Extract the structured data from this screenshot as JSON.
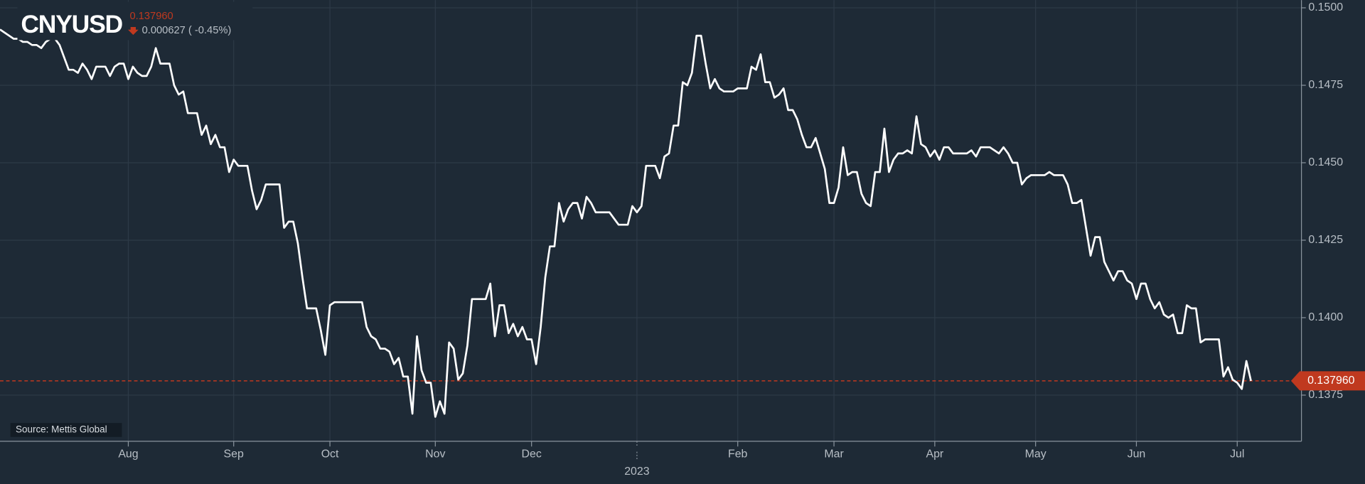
{
  "chart_data": {
    "type": "line",
    "title": "CNYUSD",
    "last_value": 0.13796,
    "last_value_label": "0.137960",
    "change_label": "0.000627 ( -0.45%)",
    "source": "Source: Mettis Global",
    "color": "#ffffff",
    "last_color": "#c0391f",
    "grid": true,
    "ylim": [
      0.13601,
      0.15025
    ],
    "yticks": [
      0.1375,
      {
        "value": 0.14,
        "label": "0.1400"
      },
      0.1425,
      {
        "value": 0.145,
        "label": "0.1450"
      },
      0.1475,
      {
        "value": 0.15,
        "label": "0.1500"
      }
    ],
    "categories": [
      null,
      null,
      null,
      null,
      null,
      null,
      null,
      null,
      null,
      null,
      null,
      null,
      null,
      null,
      null,
      null,
      null,
      null,
      null,
      null,
      null,
      null,
      null,
      null,
      null,
      null,
      null,
      null,
      "Aug",
      null,
      null,
      null,
      null,
      null,
      null,
      null,
      null,
      null,
      null,
      null,
      null,
      null,
      null,
      null,
      null,
      null,
      null,
      null,
      null,
      null,
      null,
      "Sep",
      null,
      null,
      null,
      null,
      null,
      null,
      null,
      null,
      null,
      null,
      null,
      null,
      null,
      null,
      null,
      null,
      null,
      null,
      null,
      null,
      "Oct",
      null,
      null,
      null,
      null,
      null,
      null,
      null,
      null,
      null,
      null,
      null,
      null,
      null,
      null,
      null,
      null,
      null,
      null,
      null,
      null,
      null,
      null,
      "Nov",
      null,
      null,
      null,
      null,
      null,
      null,
      null,
      null,
      null,
      null,
      null,
      null,
      null,
      null,
      null,
      null,
      null,
      null,
      null,
      null,
      "Dec",
      null,
      null,
      null,
      null,
      null,
      null,
      null,
      null,
      null,
      null,
      null,
      null,
      null,
      null,
      null,
      null,
      null,
      null,
      null,
      null,
      null,
      null,
      "2023",
      null,
      null,
      null,
      null,
      null,
      null,
      null,
      null,
      null,
      null,
      null,
      null,
      null,
      null,
      null,
      null,
      null,
      null,
      null,
      null,
      null,
      "Feb",
      null,
      null,
      null,
      null,
      null,
      null,
      null,
      null,
      null,
      null,
      null,
      null,
      null,
      null,
      null,
      null,
      null,
      null,
      null,
      null,
      "Mar",
      null,
      null,
      null,
      null,
      null,
      null,
      null,
      null,
      null,
      null,
      null,
      null,
      null,
      null,
      null,
      null,
      null,
      null,
      null,
      null,
      null,
      "Apr",
      null,
      null,
      null,
      null,
      null,
      null,
      null,
      null,
      null,
      null,
      null,
      null,
      null,
      null,
      null,
      null,
      null,
      null,
      null,
      null,
      null,
      "May",
      null,
      null,
      null,
      null,
      null,
      null,
      null,
      null,
      null,
      null,
      null,
      null,
      null,
      null,
      null,
      null,
      null,
      null,
      null,
      null,
      null,
      "Jun",
      null,
      null,
      null,
      null,
      null,
      null,
      null,
      null,
      null,
      null,
      null,
      null,
      null,
      null,
      null,
      null,
      null,
      null,
      null,
      null,
      null,
      "Jul",
      null,
      null,
      null
    ],
    "values": [
      0.1493,
      0.1492,
      0.1491,
      0.149,
      0.149,
      0.1489,
      0.1489,
      0.1488,
      0.1488,
      0.1487,
      0.1489,
      0.149,
      0.149,
      0.1488,
      0.1484,
      0.148,
      0.148,
      0.1479,
      0.1482,
      0.148,
      0.1477,
      0.1481,
      0.1481,
      0.1481,
      0.1478,
      0.1481,
      0.1482,
      0.1482,
      0.1477,
      0.1481,
      0.1479,
      0.1478,
      0.1478,
      0.1481,
      0.1487,
      0.1482,
      0.1482,
      0.1482,
      0.1475,
      0.1472,
      0.1473,
      0.1466,
      0.1466,
      0.1466,
      0.1459,
      0.1462,
      0.1456,
      0.1459,
      0.1455,
      0.1455,
      0.1447,
      0.1451,
      0.1449,
      0.1449,
      0.1449,
      0.1441,
      0.1435,
      0.1438,
      0.1443,
      0.1443,
      0.1443,
      0.1443,
      0.1429,
      0.1431,
      0.1431,
      0.1424,
      0.1413,
      0.1403,
      0.1403,
      0.1403,
      0.1396,
      0.1388,
      0.1404,
      0.1405,
      0.1405,
      0.1405,
      0.1405,
      0.1405,
      0.1405,
      0.1405,
      0.1397,
      0.1394,
      0.1393,
      0.139,
      0.139,
      0.1389,
      0.1385,
      0.1387,
      0.1381,
      0.1381,
      0.1369,
      0.1394,
      0.1383,
      0.1379,
      0.1379,
      0.1368,
      0.1373,
      0.1369,
      0.1392,
      0.139,
      0.138,
      0.1382,
      0.1391,
      0.1406,
      0.1406,
      0.1406,
      0.1406,
      0.1411,
      0.1394,
      0.1404,
      0.1404,
      0.1395,
      0.1398,
      0.1394,
      0.1397,
      0.1393,
      0.1393,
      0.1385,
      0.1397,
      0.1413,
      0.1423,
      0.1423,
      0.1437,
      0.1431,
      0.1435,
      0.1437,
      0.1437,
      0.1432,
      0.1439,
      0.1437,
      0.1434,
      0.1434,
      0.1434,
      0.1434,
      0.1432,
      0.143,
      0.143,
      0.143,
      0.1436,
      0.1434,
      0.1436,
      0.1449,
      0.1449,
      0.1449,
      0.1445,
      0.1452,
      0.1453,
      0.1462,
      0.1462,
      0.1476,
      0.1475,
      0.1479,
      0.1491,
      0.1491,
      0.1482,
      0.1474,
      0.1477,
      0.1474,
      0.1473,
      0.1473,
      0.1473,
      0.1474,
      0.1474,
      0.1474,
      0.1481,
      0.148,
      0.1485,
      0.1476,
      0.1476,
      0.1471,
      0.1472,
      0.1474,
      0.1467,
      0.1467,
      0.1464,
      0.1459,
      0.1455,
      0.1455,
      0.1458,
      0.1453,
      0.1448,
      0.1437,
      0.1437,
      0.1442,
      0.1455,
      0.1446,
      0.1447,
      0.1447,
      0.144,
      0.1437,
      0.1436,
      0.1447,
      0.1447,
      0.1461,
      0.1447,
      0.1451,
      0.1453,
      0.1453,
      0.1454,
      0.1453,
      0.1465,
      0.1456,
      0.1455,
      0.1452,
      0.1454,
      0.1451,
      0.1455,
      0.1455,
      0.1453,
      0.1453,
      0.1453,
      0.1453,
      0.1454,
      0.1452,
      0.1455,
      0.1455,
      0.1455,
      0.1454,
      0.1453,
      0.1455,
      0.1453,
      0.145,
      0.145,
      0.1443,
      0.1445,
      0.1446,
      0.1446,
      0.1446,
      0.1446,
      0.1447,
      0.1446,
      0.1446,
      0.1446,
      0.1443,
      0.1437,
      0.1437,
      0.1438,
      0.1429,
      0.142,
      0.1426,
      0.1426,
      0.1418,
      0.1415,
      0.1412,
      0.1415,
      0.1415,
      0.1412,
      0.1411,
      0.1406,
      0.1411,
      0.1411,
      0.1406,
      0.1403,
      0.1405,
      0.1401,
      0.14,
      0.1401,
      0.1395,
      0.1395,
      0.1404,
      0.1403,
      0.1403,
      0.1392,
      0.1393,
      0.1393,
      0.1393,
      0.1393,
      0.1381,
      0.1384,
      0.138,
      0.1379,
      0.1377,
      0.1386,
      0.13796
    ]
  }
}
